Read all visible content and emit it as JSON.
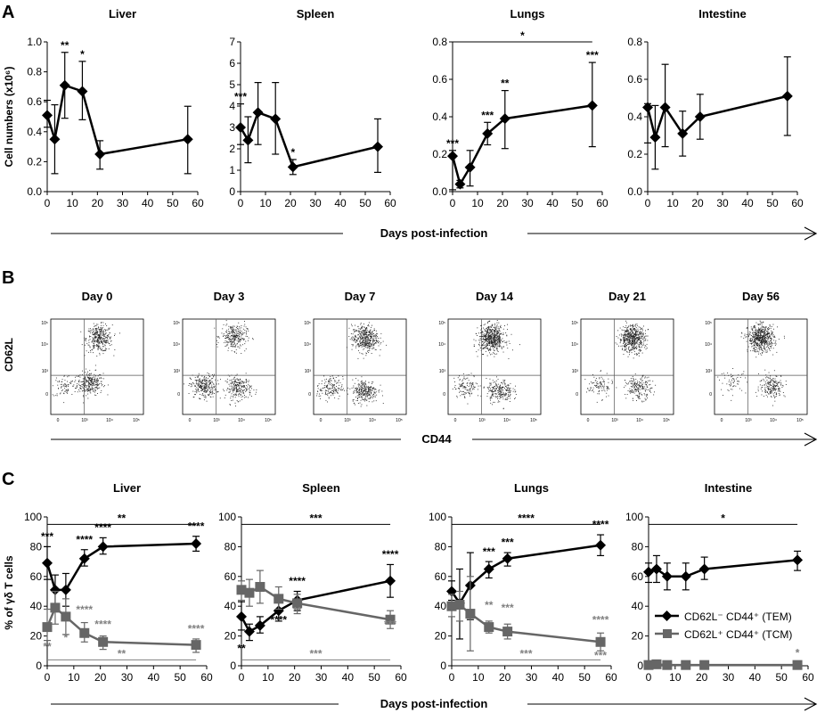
{
  "panels": [
    {
      "letter": "A"
    },
    {
      "letter": "B"
    },
    {
      "letter": "C"
    }
  ],
  "panelA": {
    "ylabel": "Cell numbers (x10⁶)",
    "xlabel": "Days post-infection"
  },
  "panelB": {
    "ylabel": "CD62L",
    "xlabel": "CD44",
    "y_ticks": [
      "10⁵",
      "10⁴",
      "10³",
      "0"
    ],
    "x_ticks": [
      "0",
      "10³",
      "10⁴",
      "10⁵"
    ],
    "plots": [
      {
        "title": "Day 0"
      },
      {
        "title": "Day 3"
      },
      {
        "title": "Day 7"
      },
      {
        "title": "Day 14"
      },
      {
        "title": "Day 21"
      },
      {
        "title": "Day 56"
      }
    ]
  },
  "panelC": {
    "ylabel": "% of γδ T cells",
    "xlabel": "Days post-infection",
    "legend": [
      {
        "label": "CD62L⁻ CD44⁺ (TEM)",
        "marker": "diamond",
        "color": "#000000"
      },
      {
        "label": "CD62L⁺ CD44⁺ (TCM)",
        "marker": "square",
        "color": "#666666"
      }
    ]
  },
  "chart_data": [
    {
      "type": "line",
      "panel": "A",
      "title": "Liver",
      "ylim": [
        0,
        1
      ],
      "yticks": [
        "0.0",
        "0.2",
        "0.4",
        "0.6",
        "0.8",
        "1.0"
      ],
      "xlim": [
        0,
        60
      ],
      "xticks": [
        "0",
        "10",
        "20",
        "30",
        "40",
        "50",
        "60"
      ],
      "series": [
        {
          "x": [
            0,
            3,
            7,
            14,
            21,
            56
          ],
          "y": [
            0.51,
            0.35,
            0.71,
            0.67,
            0.25,
            0.35
          ],
          "err_hi": [
            0.61,
            0.58,
            0.93,
            0.87,
            0.34,
            0.57
          ],
          "err_lo": [
            0.43,
            0.12,
            0.49,
            0.48,
            0.15,
            0.12
          ],
          "annotations": [
            {
              "x": 7,
              "y": 0.93,
              "text": "**"
            },
            {
              "x": 14,
              "y": 0.87,
              "text": "*"
            }
          ]
        }
      ]
    },
    {
      "type": "line",
      "panel": "A",
      "title": "Spleen",
      "ylim": [
        0,
        7
      ],
      "yticks": [
        "0",
        "1",
        "2",
        "3",
        "4",
        "5",
        "6",
        "7"
      ],
      "xlim": [
        0,
        60
      ],
      "xticks": [
        "0",
        "10",
        "20",
        "30",
        "40",
        "50",
        "60"
      ],
      "series": [
        {
          "x": [
            0,
            3,
            7,
            14,
            21,
            55
          ],
          "y": [
            3.0,
            2.4,
            3.7,
            3.4,
            1.15,
            2.1
          ],
          "err_hi": [
            4.1,
            3.5,
            5.1,
            5.1,
            1.5,
            3.4
          ],
          "err_lo": [
            2.2,
            1.35,
            2.2,
            1.75,
            0.8,
            0.9
          ],
          "annotations": [
            {
              "x": 0,
              "y": 4.1,
              "text": "***"
            },
            {
              "x": 21,
              "y": 1.5,
              "text": "*"
            }
          ]
        }
      ]
    },
    {
      "type": "line",
      "panel": "A",
      "title": "Lungs",
      "ylim": [
        0,
        0.8
      ],
      "yticks": [
        "0.0",
        "0.2",
        "0.4",
        "0.6",
        "0.8"
      ],
      "xlim": [
        0,
        60
      ],
      "xticks": [
        "0",
        "10",
        "20",
        "30",
        "40",
        "50",
        "60"
      ],
      "bracket": {
        "x1": 0,
        "x2": 56,
        "y": 0.8,
        "text": "*"
      },
      "series": [
        {
          "x": [
            0,
            3,
            7,
            14,
            21,
            56
          ],
          "y": [
            0.19,
            0.04,
            0.13,
            0.31,
            0.39,
            0.46
          ],
          "err_hi": [
            0.22,
            0.06,
            0.22,
            0.37,
            0.54,
            0.69
          ],
          "err_lo": [
            0.01,
            0.02,
            0.03,
            0.25,
            0.23,
            0.24
          ],
          "annotations": [
            {
              "x": 0,
              "y": 0.22,
              "text": "***"
            },
            {
              "x": 14,
              "y": 0.37,
              "text": "***"
            },
            {
              "x": 21,
              "y": 0.54,
              "text": "**"
            },
            {
              "x": 56,
              "y": 0.69,
              "text": "***"
            }
          ]
        }
      ]
    },
    {
      "type": "line",
      "panel": "A",
      "title": "Intestine",
      "ylim": [
        0,
        0.8
      ],
      "yticks": [
        "0.0",
        "0.2",
        "0.4",
        "0.6",
        "0.8"
      ],
      "xlim": [
        0,
        60
      ],
      "xticks": [
        "0",
        "10",
        "20",
        "30",
        "40",
        "50",
        "60"
      ],
      "series": [
        {
          "x": [
            0,
            3,
            7,
            14,
            21,
            56
          ],
          "y": [
            0.45,
            0.29,
            0.45,
            0.31,
            0.4,
            0.51
          ],
          "err_hi": [
            0.47,
            0.46,
            0.68,
            0.43,
            0.52,
            0.72
          ],
          "err_lo": [
            0.26,
            0.12,
            0.24,
            0.19,
            0.28,
            0.3
          ],
          "annotations": []
        }
      ]
    },
    {
      "type": "line",
      "panel": "C",
      "title": "Liver",
      "ylim": [
        0,
        100
      ],
      "yticks": [
        "0",
        "20",
        "40",
        "60",
        "80",
        "100"
      ],
      "xlim": [
        0,
        60
      ],
      "xticks": [
        "0",
        "10",
        "20",
        "30",
        "40",
        "50",
        "60"
      ],
      "brackets": [
        {
          "x1": 0,
          "x2": 56,
          "y": 95,
          "text": "**",
          "color": "#000000"
        },
        {
          "x1": 0,
          "x2": 56,
          "y": 4,
          "text": "**",
          "color": "#808080"
        }
      ],
      "series": [
        {
          "name": "CD62L⁻ CD44⁺ (TEM)",
          "marker": "diamond",
          "color": "#000000",
          "x": [
            0,
            3,
            7,
            14,
            21,
            56
          ],
          "y": [
            69,
            51,
            51,
            72,
            80,
            82
          ],
          "err_hi": [
            80,
            61,
            62,
            78,
            86,
            87
          ],
          "err_lo": [
            58,
            40,
            40,
            67,
            75,
            77
          ],
          "annotations": [
            {
              "x": 0,
              "y": 82,
              "text": "***"
            },
            {
              "x": 14,
              "y": 80,
              "text": "****"
            },
            {
              "x": 21,
              "y": 88,
              "text": "****"
            },
            {
              "x": 56,
              "y": 89,
              "text": "****"
            }
          ]
        },
        {
          "name": "CD62L⁺ CD44⁺ (TCM)",
          "marker": "square",
          "color": "#666666",
          "x": [
            0,
            3,
            7,
            14,
            21,
            56
          ],
          "y": [
            26,
            39,
            33,
            22,
            16,
            14
          ],
          "err_hi": [
            38,
            50,
            45,
            29,
            20,
            18
          ],
          "err_lo": [
            17,
            28,
            21,
            16,
            11,
            9
          ],
          "annotations": [
            {
              "x": 0,
              "y": 8,
              "text": "**"
            },
            {
              "x": 7,
              "y": 14,
              "text": "*"
            },
            {
              "x": 14,
              "y": 33,
              "text": "****"
            },
            {
              "x": 21,
              "y": 23,
              "text": "****"
            },
            {
              "x": 56,
              "y": 20,
              "text": "****"
            }
          ]
        }
      ]
    },
    {
      "type": "line",
      "panel": "C",
      "title": "Spleen",
      "ylim": [
        0,
        100
      ],
      "yticks": [
        "0",
        "20",
        "40",
        "60",
        "80",
        "100"
      ],
      "xlim": [
        0,
        60
      ],
      "xticks": [
        "0",
        "10",
        "20",
        "30",
        "40",
        "50",
        "60"
      ],
      "brackets": [
        {
          "x1": 0,
          "x2": 56,
          "y": 95,
          "text": "***",
          "color": "#000000"
        },
        {
          "x1": 0,
          "x2": 56,
          "y": 4,
          "text": "***",
          "color": "#808080"
        }
      ],
      "series": [
        {
          "name": "CD62L⁻ CD44⁺ (TEM)",
          "marker": "diamond",
          "color": "#000000",
          "x": [
            0,
            3,
            7,
            14,
            21,
            56
          ],
          "y": [
            33,
            23,
            27,
            37,
            44,
            57
          ],
          "err_hi": [
            43,
            28,
            33,
            44,
            50,
            68
          ],
          "err_lo": [
            24,
            17,
            22,
            30,
            37,
            46
          ],
          "annotations": [
            {
              "x": 0,
              "y": 7,
              "text": "**"
            },
            {
              "x": 14,
              "y": 26,
              "text": "****"
            },
            {
              "x": 21,
              "y": 52,
              "text": "****"
            },
            {
              "x": 56,
              "y": 70,
              "text": "****"
            }
          ]
        },
        {
          "name": "CD62L⁺ CD44⁺ (TCM)",
          "marker": "square",
          "color": "#666666",
          "x": [
            0,
            3,
            7,
            14,
            21,
            56
          ],
          "y": [
            51,
            49,
            53,
            45,
            42,
            31
          ],
          "err_hi": [
            57,
            58,
            64,
            53,
            48,
            37
          ],
          "err_lo": [
            44,
            40,
            42,
            38,
            35,
            25
          ],
          "annotations": [
            {
              "x": 21,
              "y": 32,
              "text": "**"
            },
            {
              "x": 56,
              "y": 23,
              "text": "***"
            }
          ]
        }
      ]
    },
    {
      "type": "line",
      "panel": "C",
      "title": "Lungs",
      "ylim": [
        0,
        100
      ],
      "yticks": [
        "0",
        "20",
        "40",
        "60",
        "80",
        "100"
      ],
      "xlim": [
        0,
        60
      ],
      "xticks": [
        "0",
        "10",
        "20",
        "30",
        "40",
        "50",
        "60"
      ],
      "brackets": [
        {
          "x1": 0,
          "x2": 56,
          "y": 95,
          "text": "****",
          "color": "#000000"
        },
        {
          "x1": 0,
          "x2": 56,
          "y": 4,
          "text": "***",
          "color": "#808080"
        }
      ],
      "series": [
        {
          "name": "CD62L⁻ CD44⁺ (TEM)",
          "marker": "diamond",
          "color": "#000000",
          "x": [
            0,
            3,
            7,
            14,
            21,
            56
          ],
          "y": [
            50,
            42,
            54,
            65,
            72,
            81
          ],
          "err_hi": [
            57,
            65,
            76,
            70,
            76,
            88
          ],
          "err_lo": [
            44,
            18,
            31,
            59,
            67,
            74
          ],
          "annotations": [
            {
              "x": 14,
              "y": 72,
              "text": "***"
            },
            {
              "x": 21,
              "y": 78,
              "text": "***"
            },
            {
              "x": 56,
              "y": 90,
              "text": "****"
            }
          ]
        },
        {
          "name": "CD62L⁺ CD44⁺ (TCM)",
          "marker": "square",
          "color": "#666666",
          "x": [
            0,
            3,
            7,
            14,
            21,
            56
          ],
          "y": [
            40,
            41,
            35,
            26,
            23,
            16
          ],
          "err_hi": [
            48,
            50,
            60,
            30,
            28,
            22
          ],
          "err_lo": [
            33,
            30,
            10,
            22,
            18,
            10
          ],
          "annotations": [
            {
              "x": 14,
              "y": 36,
              "text": "**"
            },
            {
              "x": 21,
              "y": 34,
              "text": "***"
            },
            {
              "x": 56,
              "y": 26,
              "text": "****"
            },
            {
              "x": 56,
              "y": 2,
              "text": "***"
            }
          ]
        }
      ]
    },
    {
      "type": "line",
      "panel": "C",
      "title": "Intestine",
      "ylim": [
        0,
        100
      ],
      "yticks": [
        "0",
        "20",
        "40",
        "60",
        "80",
        "100"
      ],
      "xlim": [
        0,
        60
      ],
      "xticks": [
        "0",
        "10",
        "20",
        "30",
        "40",
        "50",
        "60"
      ],
      "brackets": [
        {
          "x1": 0,
          "x2": 56,
          "y": 95,
          "text": "*",
          "color": "#000000"
        }
      ],
      "series": [
        {
          "name": "CD62L⁻ CD44⁺ (TEM)",
          "marker": "diamond",
          "color": "#000000",
          "x": [
            0,
            3,
            7,
            14,
            21,
            56
          ],
          "y": [
            63,
            65,
            60,
            60,
            65,
            71
          ],
          "err_hi": [
            69,
            74,
            69,
            69,
            73,
            77
          ],
          "err_lo": [
            56,
            56,
            51,
            51,
            58,
            64
          ],
          "annotations": []
        },
        {
          "name": "CD62L⁺ CD44⁺ (TCM)",
          "marker": "square",
          "color": "#666666",
          "x": [
            0,
            3,
            7,
            14,
            21,
            56
          ],
          "y": [
            0.5,
            1,
            0.5,
            0.5,
            0.5,
            0.5
          ],
          "err_hi": [
            1,
            2,
            1,
            1,
            1,
            1
          ],
          "err_lo": [
            0,
            0,
            0,
            0,
            0,
            0
          ],
          "annotations": [
            {
              "x": 56,
              "y": 4,
              "text": "*"
            }
          ]
        }
      ]
    }
  ]
}
